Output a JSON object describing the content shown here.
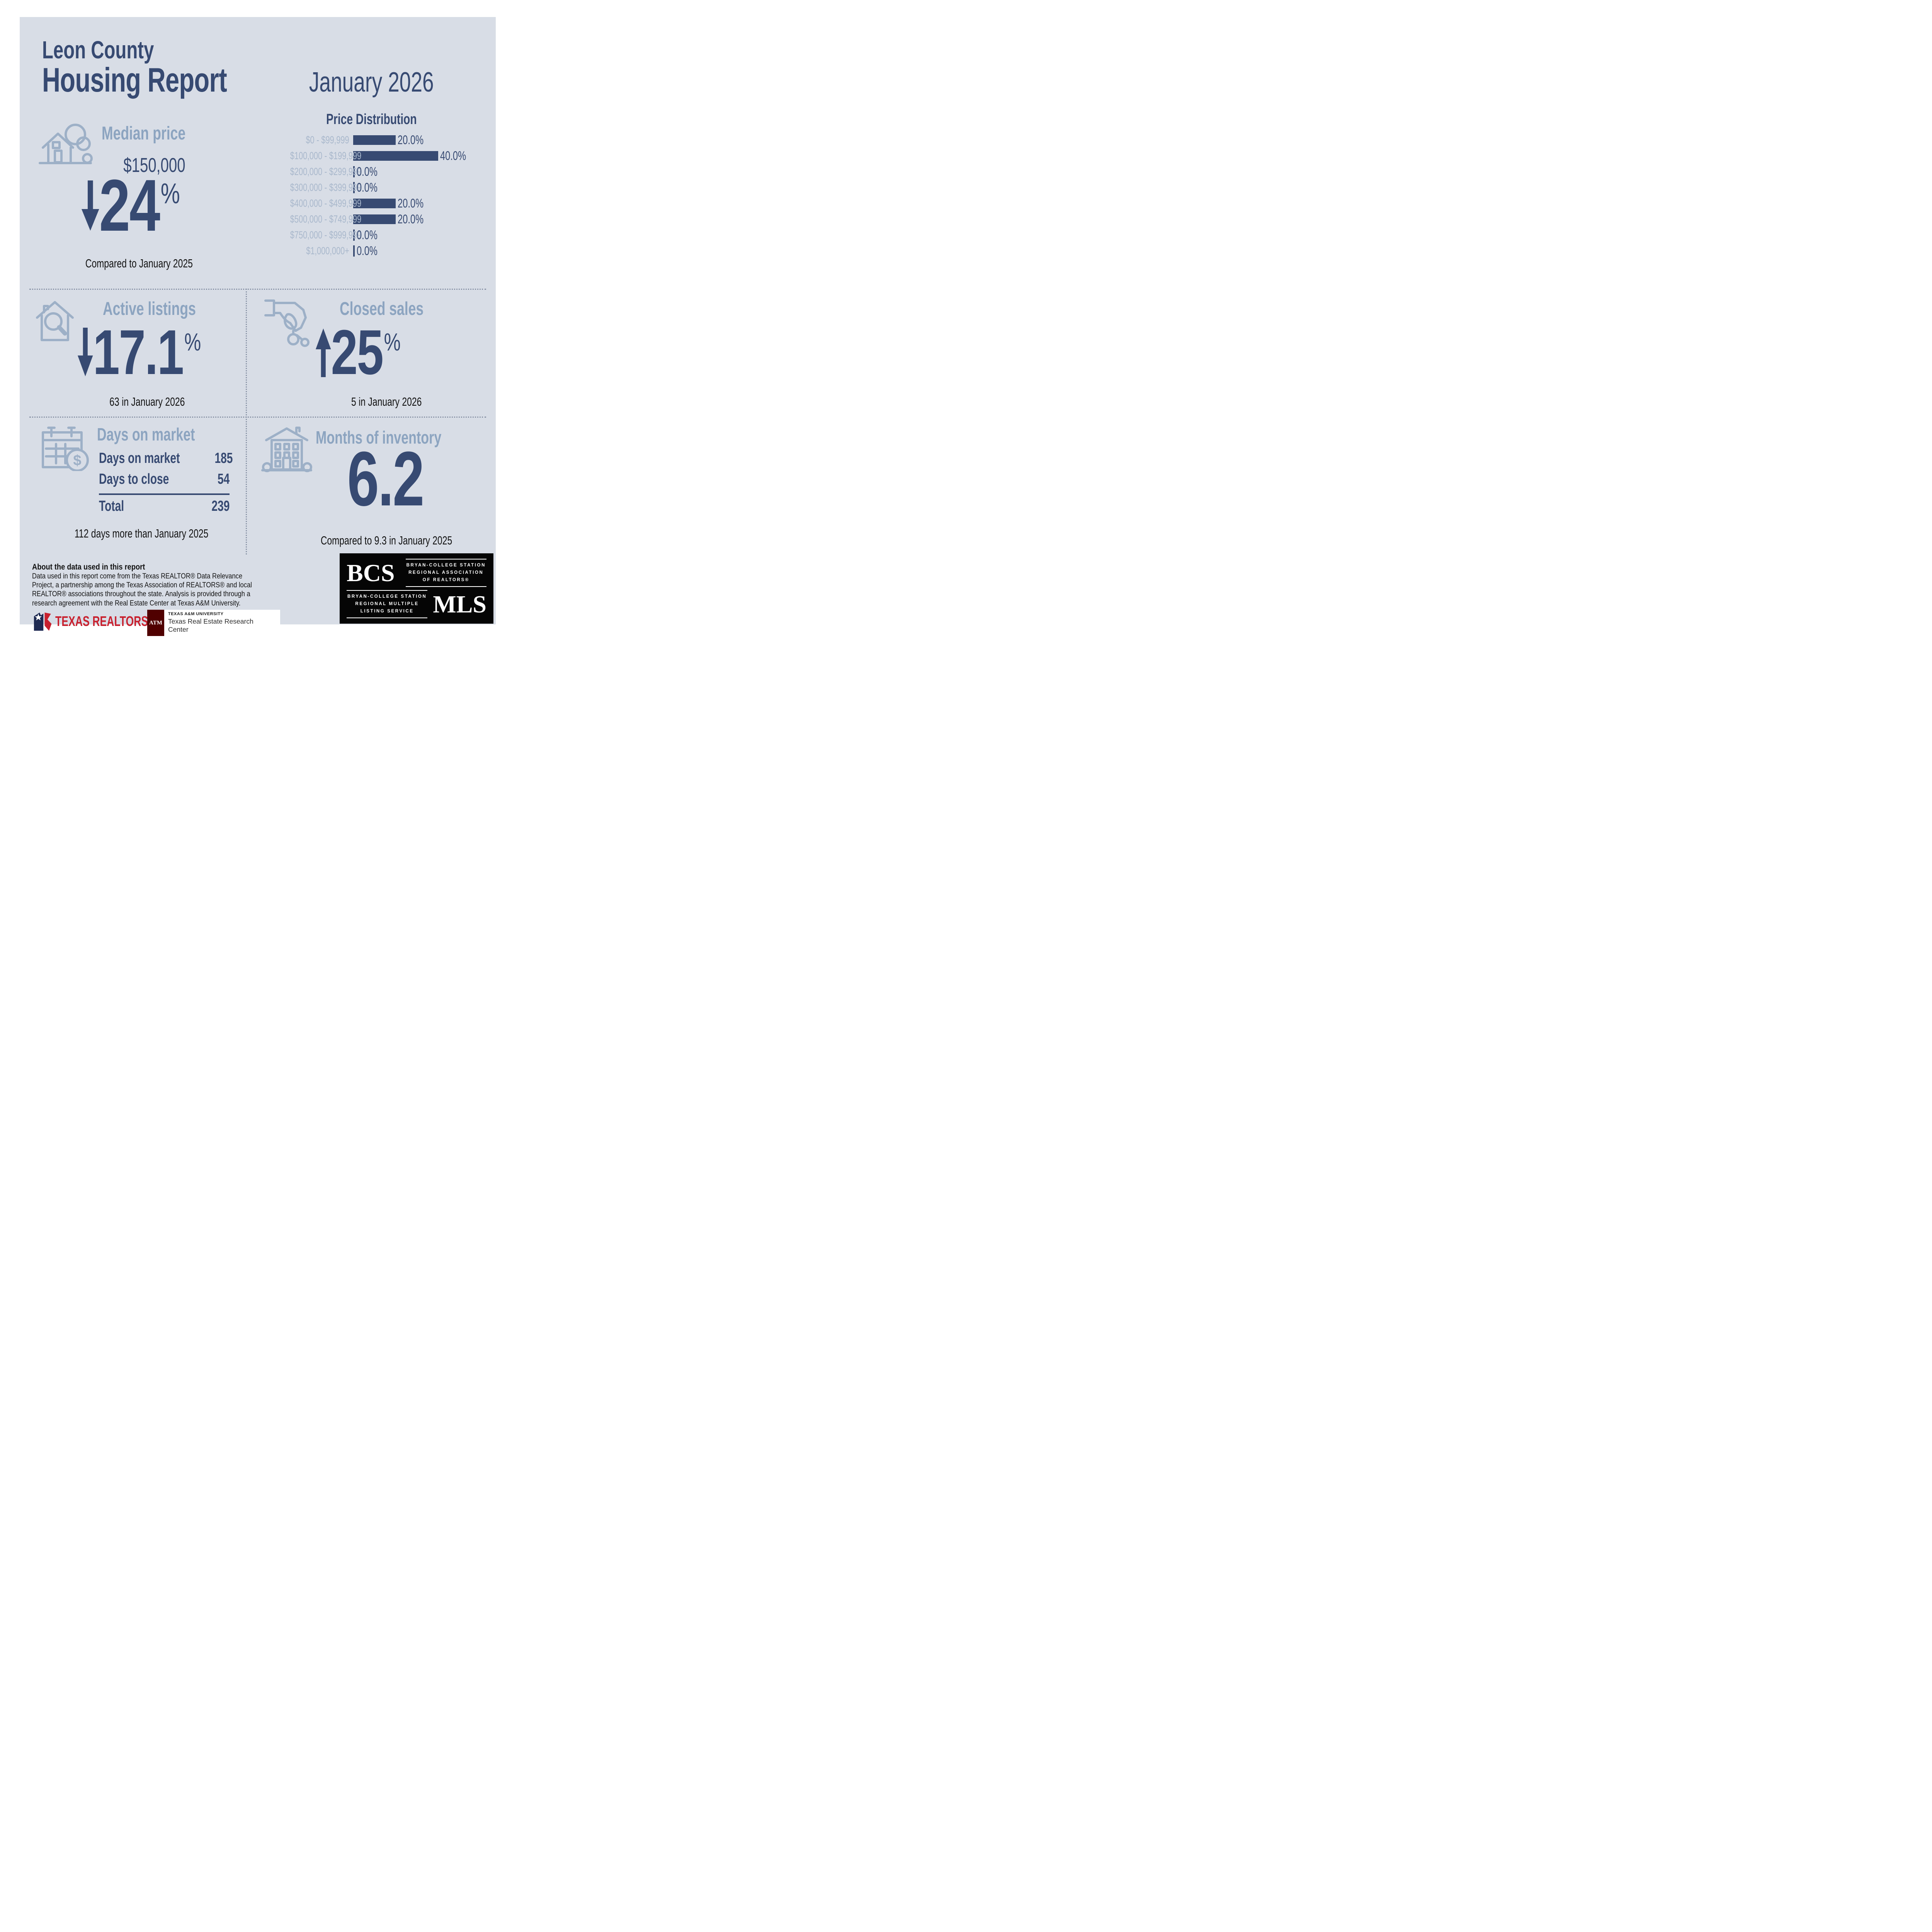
{
  "title": {
    "line1": "Leon County",
    "line2": "Housing Report"
  },
  "period": "January 2026",
  "chart_data": {
    "type": "bar",
    "orientation": "horizontal",
    "title": "Price Distribution",
    "categories": [
      "$0 - $99,999",
      "$100,000 - $199,999",
      "$200,000 - $299,999",
      "$300,000 - $399,999",
      "$400,000 - $499,999",
      "$500,000 - $749,999",
      "$750,000 - $999,999",
      "$1,000,000+"
    ],
    "values": [
      20.0,
      40.0,
      0.0,
      0.0,
      20.0,
      20.0,
      0.0,
      0.0
    ],
    "labels": [
      "20.0%",
      "40.0%",
      "0.0%",
      "0.0%",
      "20.0%",
      "20.0%",
      "0.0%",
      "0.0%"
    ],
    "xlabel": "",
    "ylabel": "",
    "xlim": [
      0,
      40
    ],
    "bar_color": "#374a72",
    "category_label_color": "#a9b8cc",
    "grid": false,
    "legend": false
  },
  "median_price": {
    "heading": "Median price",
    "value": "$150,000",
    "change": "24",
    "unit": "%",
    "direction": "down",
    "note": "Compared to January 2025"
  },
  "active_listings": {
    "heading": "Active listings",
    "change": "17.1",
    "unit": "%",
    "direction": "down",
    "note": "63 in January 2026"
  },
  "closed_sales": {
    "heading": "Closed sales",
    "change": "25",
    "unit": "%",
    "direction": "up",
    "note": "5 in January 2026"
  },
  "days_on_market": {
    "heading": "Days on market",
    "rows": [
      {
        "label": "Days on market",
        "value": "185"
      },
      {
        "label": "Days to close",
        "value": "54"
      }
    ],
    "total_label": "Total",
    "total_value": "239",
    "note": "112 days more than January 2025"
  },
  "months_inventory": {
    "heading": "Months of inventory",
    "value": "6.2",
    "note": "Compared to 9.3 in January 2025"
  },
  "about": {
    "heading": "About the data used in this report",
    "body": "Data used in this report come from the Texas REALTOR® Data Relevance Project, a partnership among the Texas Association of REALTORS® and local REALTOR® associations throughout the state. Analysis is provided through a research agreement with the Real Estate Center at Texas A&M University."
  },
  "logos": {
    "texas_realtors": "TEXAS REALTORS®",
    "tamu_monogram": "ATM",
    "tamu_line1": "TEXAS A&M UNIVERSITY",
    "tamu_line2": "Texas Real Estate Research Center",
    "bcs": "BCS",
    "mls": "MLS",
    "bcs_assoc": [
      "BRYAN-COLLEGE STATION",
      "REGIONAL ASSOCIATION",
      "OF REALTORS®"
    ],
    "mls_assoc": [
      "BRYAN-COLLEGE STATION",
      "REGIONAL MULTIPLE",
      "LISTING SERVICE"
    ]
  },
  "colors": {
    "background": "#ffffff",
    "panel_bg": "#d8dde6",
    "navy": "#374a72",
    "heading_blue": "#8ca4c0",
    "label_blue": "#a9b8cc",
    "icon_blue": "#9db0c7",
    "text_black": "#121212",
    "dot_gray": "#8b95a8",
    "realtor_red": "#c8202e",
    "realtor_navy": "#1e2a52",
    "tamu_maroon": "#500000",
    "logo_black": "#050505"
  }
}
